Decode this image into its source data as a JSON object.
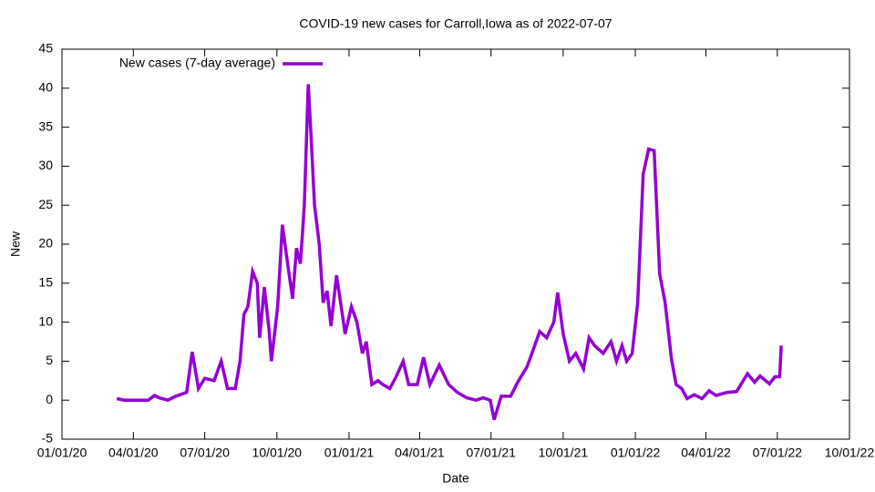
{
  "chart_data": {
    "type": "line",
    "title": "COVID-19 new cases for Carroll,Iowa as of 2022-07-07",
    "xlabel": "Date",
    "ylabel": "New",
    "legend": "top left",
    "xlim": [
      "2020-01-01",
      "2022-10-01"
    ],
    "xticks": [
      {
        "value": "2020-01-01",
        "label": "01/01/20"
      },
      {
        "value": "2020-04-01",
        "label": "04/01/20"
      },
      {
        "value": "2020-07-01",
        "label": "07/01/20"
      },
      {
        "value": "2020-10-01",
        "label": "10/01/20"
      },
      {
        "value": "2021-01-01",
        "label": "01/01/21"
      },
      {
        "value": "2021-04-01",
        "label": "04/01/21"
      },
      {
        "value": "2021-07-01",
        "label": "07/01/21"
      },
      {
        "value": "2021-10-01",
        "label": "10/01/21"
      },
      {
        "value": "2022-01-01",
        "label": "01/01/22"
      },
      {
        "value": "2022-04-01",
        "label": "04/01/22"
      },
      {
        "value": "2022-07-01",
        "label": "07/01/22"
      },
      {
        "value": "2022-10-01",
        "label": "10/01/22"
      }
    ],
    "ylim": [
      -5,
      45
    ],
    "yticks": [
      -5,
      0,
      5,
      10,
      15,
      20,
      25,
      30,
      35,
      40,
      45
    ],
    "x": [
      "2020-03-11",
      "2020-03-20",
      "2020-04-20",
      "2020-04-28",
      "2020-05-04",
      "2020-05-15",
      "2020-05-25",
      "2020-06-08",
      "2020-06-15",
      "2020-06-23",
      "2020-07-01",
      "2020-07-13",
      "2020-07-22",
      "2020-07-30",
      "2020-08-09",
      "2020-08-15",
      "2020-08-20",
      "2020-08-25",
      "2020-08-31",
      "2020-09-06",
      "2020-09-09",
      "2020-09-15",
      "2020-09-21",
      "2020-09-24",
      "2020-10-02",
      "2020-10-08",
      "2020-10-14",
      "2020-10-21",
      "2020-10-26",
      "2020-10-31",
      "2020-11-05",
      "2020-11-10",
      "2020-11-14",
      "2020-11-18",
      "2020-11-24",
      "2020-11-29",
      "2020-12-04",
      "2020-12-09",
      "2020-12-16",
      "2020-12-22",
      "2020-12-27",
      "2021-01-04",
      "2021-01-11",
      "2021-01-18",
      "2021-01-23",
      "2021-01-30",
      "2021-02-07",
      "2021-02-13",
      "2021-02-22",
      "2021-03-02",
      "2021-03-11",
      "2021-03-18",
      "2021-03-29",
      "2021-04-06",
      "2021-04-14",
      "2021-04-26",
      "2021-05-08",
      "2021-05-19",
      "2021-05-31",
      "2021-06-12",
      "2021-06-21",
      "2021-06-30",
      "2021-07-05",
      "2021-07-14",
      "2021-07-26",
      "2021-08-04",
      "2021-08-16",
      "2021-08-25",
      "2021-09-01",
      "2021-09-10",
      "2021-09-19",
      "2021-09-24",
      "2021-10-01",
      "2021-10-09",
      "2021-10-17",
      "2021-10-27",
      "2021-11-03",
      "2021-11-10",
      "2021-11-21",
      "2021-12-01",
      "2021-12-08",
      "2021-12-15",
      "2021-12-21",
      "2021-12-28",
      "2022-01-04",
      "2022-01-11",
      "2022-01-18",
      "2022-01-25",
      "2022-02-01",
      "2022-02-08",
      "2022-02-16",
      "2022-02-22",
      "2022-03-01",
      "2022-03-08",
      "2022-03-17",
      "2022-03-27",
      "2022-04-05",
      "2022-04-14",
      "2022-04-28",
      "2022-05-10",
      "2022-05-24",
      "2022-06-02",
      "2022-06-09",
      "2022-06-21",
      "2022-06-28",
      "2022-07-04",
      "2022-07-06"
    ],
    "series": [
      {
        "name": "New cases (7-day average)",
        "color": "#9400d3",
        "values": [
          0.2,
          0,
          0,
          0.6,
          0.3,
          0,
          0.5,
          1,
          6.2,
          1.5,
          2.8,
          2.5,
          5,
          1.5,
          1.5,
          5,
          11,
          12,
          16.5,
          15,
          8,
          14.5,
          9,
          5,
          12,
          22.5,
          18,
          13,
          19.5,
          17.5,
          25,
          40.5,
          33,
          25,
          20,
          12.5,
          14,
          9.5,
          16,
          12,
          8.5,
          12,
          10,
          6,
          7.5,
          2,
          2.5,
          2,
          1.5,
          3,
          5,
          2,
          2,
          5.5,
          2,
          4.5,
          2,
          1,
          0.3,
          0,
          0.3,
          0,
          -2.5,
          0.5,
          0.5,
          2.3,
          4.3,
          6.8,
          8.8,
          8,
          10,
          13.8,
          8.5,
          5,
          6,
          4,
          8,
          7,
          6,
          7.5,
          5,
          7,
          5,
          6,
          12.5,
          29,
          32.2,
          32,
          16.2,
          12.5,
          5.3,
          2,
          1.5,
          0.2,
          0.7,
          0.2,
          1.2,
          0.6,
          1,
          1.1,
          3.4,
          2.3,
          3.1,
          2.1,
          3,
          3,
          7
        ]
      }
    ]
  }
}
